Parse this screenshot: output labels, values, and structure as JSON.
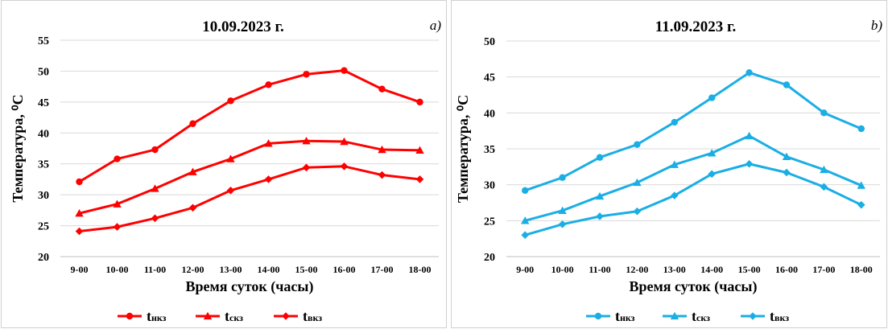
{
  "chart_data": [
    {
      "type": "line",
      "title": "10.09.2023 г.",
      "panel_label": "a)",
      "xlabel": "Время суток (часы)",
      "ylabel": "Температура, ⁰С",
      "ylim": [
        20,
        55
      ],
      "ystep": 5,
      "grid": true,
      "legend_position": "bottom",
      "color": "#ff0000",
      "categories": [
        "9-00",
        "10-00",
        "11-00",
        "12-00",
        "13-00",
        "14-00",
        "15-00",
        "16-00",
        "17-00",
        "18-00"
      ],
      "series": [
        {
          "name": "tнкз",
          "name_main": "t",
          "name_sub": "нкз",
          "marker": "circle",
          "values": [
            32.1,
            35.8,
            37.3,
            41.5,
            45.2,
            47.8,
            49.5,
            50.1,
            47.1,
            45.0
          ]
        },
        {
          "name": "tскз",
          "name_main": "t",
          "name_sub": "скз",
          "marker": "triangle",
          "values": [
            27.0,
            28.5,
            31.0,
            33.7,
            35.8,
            38.3,
            38.7,
            38.6,
            37.3,
            37.2
          ]
        },
        {
          "name": "tвкз",
          "name_main": "t",
          "name_sub": "вкз",
          "marker": "diamond",
          "values": [
            24.1,
            24.8,
            26.2,
            27.9,
            30.7,
            32.5,
            34.4,
            34.6,
            33.2,
            32.5
          ]
        }
      ]
    },
    {
      "type": "line",
      "title": "11.09.2023 г.",
      "panel_label": "b)",
      "xlabel": "Время суток (часы)",
      "ylabel": "Температура, ⁰С",
      "ylim": [
        20,
        50
      ],
      "ystep": 5,
      "grid": true,
      "legend_position": "bottom",
      "color": "#1aaee5",
      "categories": [
        "9-00",
        "10-00",
        "11-00",
        "12-00",
        "13-00",
        "14-00",
        "15-00",
        "16-00",
        "17-00",
        "18-00"
      ],
      "series": [
        {
          "name": "tнкз",
          "name_main": "t",
          "name_sub": "нкз",
          "marker": "circle",
          "values": [
            29.2,
            31.0,
            33.8,
            35.6,
            38.7,
            42.1,
            45.6,
            43.9,
            40.0,
            37.8
          ]
        },
        {
          "name": "tскз",
          "name_main": "t",
          "name_sub": "скз",
          "marker": "triangle",
          "values": [
            25.0,
            26.4,
            28.4,
            30.3,
            32.8,
            34.4,
            36.8,
            33.9,
            32.1,
            29.9
          ]
        },
        {
          "name": "tвкз",
          "name_main": "t",
          "name_sub": "вкз",
          "marker": "diamond",
          "values": [
            23.0,
            24.5,
            25.6,
            26.3,
            28.5,
            31.5,
            32.9,
            31.7,
            29.7,
            27.2
          ]
        }
      ]
    }
  ]
}
